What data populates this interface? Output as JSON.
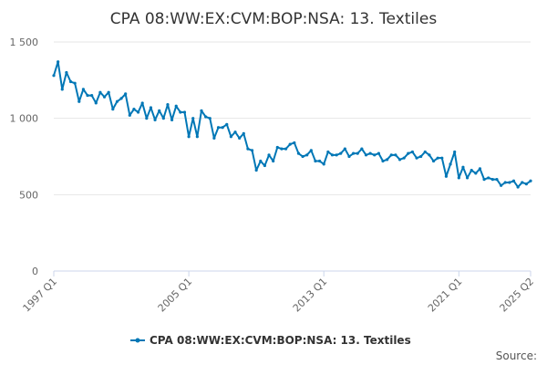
{
  "chart_data": {
    "type": "line",
    "title": "CPA 08:WW:EX:CVM:BOP:NSA: 13. Textiles",
    "xlabel": "",
    "ylabel": "",
    "ylim": [
      0,
      1500
    ],
    "yticks": [
      0,
      500,
      1000,
      1500
    ],
    "ytick_labels": [
      "0",
      "500",
      "1 000",
      "1 500"
    ],
    "xticks": [
      "1997 Q1",
      "2005 Q1",
      "2013 Q1",
      "2021 Q1",
      "2025 Q2"
    ],
    "grid": true,
    "legend": "bottom-center",
    "series_color": "#0077b6",
    "source_label": "Source:",
    "series": [
      {
        "name": "CPA 08:WW:EX:CVM:BOP:NSA: 13. Textiles",
        "x_start": "1997 Q1",
        "x_end": "2025 Q2",
        "values": [
          1280,
          1370,
          1190,
          1300,
          1240,
          1230,
          1110,
          1190,
          1150,
          1150,
          1100,
          1170,
          1140,
          1170,
          1060,
          1110,
          1130,
          1160,
          1020,
          1060,
          1040,
          1100,
          1000,
          1070,
          990,
          1050,
          1000,
          1090,
          990,
          1080,
          1040,
          1040,
          880,
          1000,
          880,
          1050,
          1010,
          1000,
          870,
          940,
          940,
          960,
          880,
          910,
          870,
          900,
          800,
          790,
          660,
          720,
          690,
          760,
          720,
          810,
          800,
          800,
          830,
          840,
          770,
          750,
          760,
          790,
          720,
          720,
          700,
          780,
          760,
          760,
          770,
          800,
          750,
          770,
          770,
          800,
          760,
          770,
          760,
          770,
          720,
          730,
          760,
          760,
          730,
          740,
          770,
          780,
          740,
          750,
          780,
          760,
          720,
          740,
          740,
          620,
          700,
          780,
          610,
          680,
          610,
          660,
          640,
          670,
          600,
          610,
          600,
          600,
          560,
          580,
          580,
          590,
          550,
          580,
          570,
          590
        ]
      }
    ]
  }
}
